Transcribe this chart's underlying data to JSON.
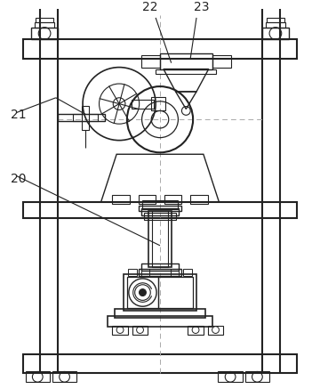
{
  "background_color": "#ffffff",
  "line_color": "#222222",
  "dashed_color": "#aaaaaa",
  "label_fontsize": 10,
  "fig_width": 3.6,
  "fig_height": 4.37,
  "dpi": 100
}
